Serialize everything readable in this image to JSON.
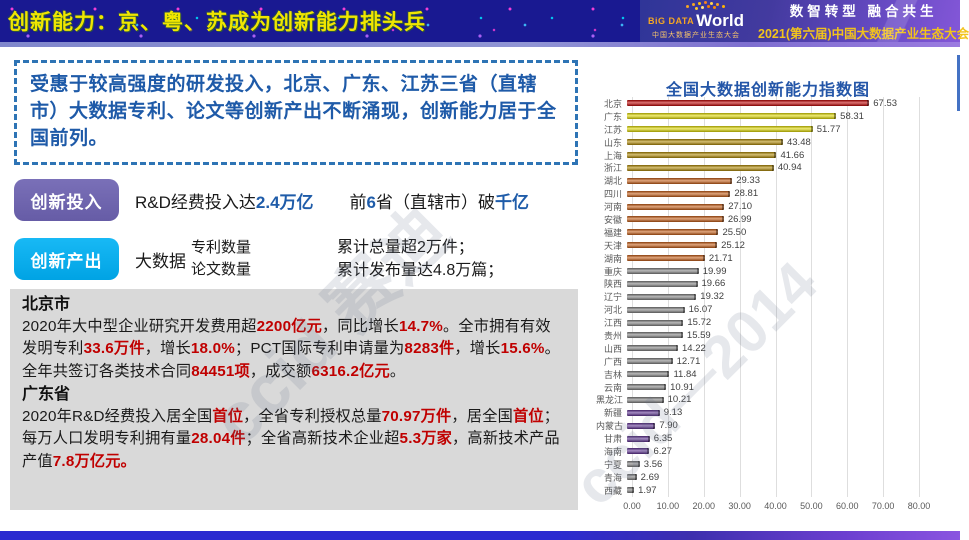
{
  "header": {
    "title": "创新能力：京、粤、苏成为创新能力排头兵",
    "logo": {
      "name_prefix": "BiG DATA",
      "name_main": "World",
      "subtitle": "中国大数据产业生态大会"
    },
    "slogan": "数智转型 融合共生",
    "event_title": "2021(第六届)中国大数据产业生态大会"
  },
  "intro_text": "受惠于较高强度的研发投入，北京、广东、江苏三省（直辖市）大数据专利、论文等创新产出不断涌现，创新能力居于全国前列。",
  "invest": {
    "badge": "创新投入",
    "line1": [
      {
        "t": "R&D经费投入达"
      },
      {
        "t": "2.4万亿",
        "hl": "blue"
      }
    ],
    "line2": [
      {
        "t": "前"
      },
      {
        "t": "6",
        "hl": "blue"
      },
      {
        "t": "省（直辖市）破"
      },
      {
        "t": "千亿",
        "hl": "blue"
      }
    ]
  },
  "output": {
    "badge": "创新产出",
    "lead": "大数据",
    "stack": [
      "专利数量",
      "论文数量"
    ],
    "results": [
      "累计总量超2万件；",
      "累计发布量达4.8万篇；"
    ]
  },
  "details": {
    "sections": [
      {
        "title": "北京市",
        "segments": [
          {
            "t": "2020年大中型企业研究开发费用超"
          },
          {
            "t": "2200亿元",
            "hl": "red"
          },
          {
            "t": "，同比增长"
          },
          {
            "t": "14.7%",
            "hl": "red"
          },
          {
            "t": "。全市拥有有效发明专利"
          },
          {
            "t": "33.6万件",
            "hl": "red"
          },
          {
            "t": "，增长"
          },
          {
            "t": "18.0%",
            "hl": "red"
          },
          {
            "t": "；PCT国际专利申请量为"
          },
          {
            "t": "8283件",
            "hl": "red"
          },
          {
            "t": "，增长"
          },
          {
            "t": "15.6%",
            "hl": "red"
          },
          {
            "t": "。全年共签订各类技术合同"
          },
          {
            "t": "84451项",
            "hl": "red"
          },
          {
            "t": "，成交额"
          },
          {
            "t": "6316.2亿元",
            "hl": "red"
          },
          {
            "t": "。"
          }
        ]
      },
      {
        "title": "广东省",
        "segments": [
          {
            "t": "2020年R&D经费投入居全国"
          },
          {
            "t": "首位",
            "hl": "red"
          },
          {
            "t": "，全省专利授权总量"
          },
          {
            "t": "70.97万件",
            "hl": "red"
          },
          {
            "t": "，居全国"
          },
          {
            "t": "首位",
            "hl": "red"
          },
          {
            "t": "；每万人口发明专利拥有量"
          },
          {
            "t": "28.04件",
            "hl": "red"
          },
          {
            "t": "；全省高新技术企业超"
          },
          {
            "t": "5.3万家",
            "hl": "red"
          },
          {
            "t": "，高新技术产品产值"
          },
          {
            "t": "7.8万亿元。",
            "hl": "red"
          }
        ]
      }
    ]
  },
  "watermarks": [
    "ccid 赛迪",
    "ccid—2014"
  ],
  "chart_data": {
    "type": "bar",
    "orientation": "horizontal",
    "title": "全国大数据创新能力指数图",
    "categories": [
      "北京",
      "广东",
      "江苏",
      "山东",
      "上海",
      "浙江",
      "湖北",
      "四川",
      "河南",
      "安徽",
      "福建",
      "天津",
      "湖南",
      "重庆",
      "陕西",
      "辽宁",
      "河北",
      "江西",
      "贵州",
      "山西",
      "广西",
      "吉林",
      "云南",
      "黑龙江",
      "新疆",
      "内蒙古",
      "甘肃",
      "海南",
      "宁夏",
      "青海",
      "西藏"
    ],
    "values": [
      67.53,
      58.31,
      51.77,
      43.48,
      41.66,
      40.94,
      29.33,
      28.81,
      27.1,
      26.99,
      25.5,
      25.12,
      21.71,
      19.99,
      19.66,
      19.32,
      16.07,
      15.72,
      15.59,
      14.22,
      12.71,
      11.84,
      10.91,
      10.21,
      9.13,
      7.9,
      6.35,
      6.27,
      3.56,
      2.69,
      1.97
    ],
    "value_labels": [
      "67.53",
      "58.31",
      "51.77",
      "43.48",
      "41.66",
      "40.94",
      "29.33",
      "28.81",
      "27.10",
      "26.99",
      "25.50",
      "25.12",
      "21.71",
      "19.99",
      "19.66",
      "19.32",
      "16.07",
      "15.72",
      "15.59",
      "14.22",
      "12.71",
      "11.84",
      "10.91",
      "10.21",
      "9.13",
      "7.90",
      "6.35",
      "6.27",
      "3.56",
      "2.69",
      "1.97"
    ],
    "colors": [
      "#C00000",
      "#E2DA00",
      "#E2DA00",
      "#B08800",
      "#B08800",
      "#B08800",
      "#C55A11",
      "#C55A11",
      "#C55A11",
      "#C55A11",
      "#C55A11",
      "#C55A11",
      "#C55A11",
      "#7F7F7F",
      "#7F7F7F",
      "#7F7F7F",
      "#7F7F7F",
      "#7F7F7F",
      "#7F7F7F",
      "#7F7F7F",
      "#7F7F7F",
      "#7F7F7F",
      "#7F7F7F",
      "#7F7F7F",
      "#5C2D91",
      "#5C2D91",
      "#5C2D91",
      "#5C2D91",
      "#7F7F7F",
      "#7F7F7F",
      "#7F7F7F"
    ],
    "xlim": [
      0,
      80
    ],
    "x_ticks": [
      "0.00",
      "10.00",
      "20.00",
      "30.00",
      "40.00",
      "50.00",
      "60.00",
      "70.00",
      "80.00"
    ],
    "xlabel": "",
    "ylabel": "",
    "grid": true,
    "legend": false
  }
}
